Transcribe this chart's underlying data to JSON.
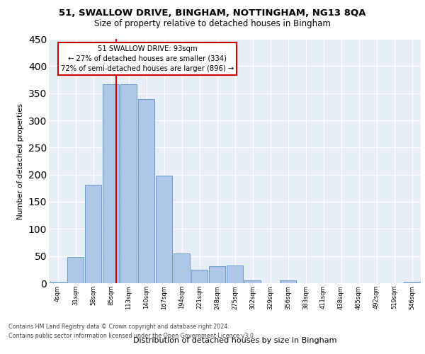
{
  "title1": "51, SWALLOW DRIVE, BINGHAM, NOTTINGHAM, NG13 8QA",
  "title2": "Size of property relative to detached houses in Bingham",
  "xlabel": "Distribution of detached houses by size in Bingham",
  "ylabel": "Number of detached properties",
  "bin_labels": [
    "4sqm",
    "31sqm",
    "58sqm",
    "85sqm",
    "113sqm",
    "140sqm",
    "167sqm",
    "194sqm",
    "221sqm",
    "248sqm",
    "275sqm",
    "302sqm",
    "329sqm",
    "356sqm",
    "383sqm",
    "411sqm",
    "438sqm",
    "465sqm",
    "492sqm",
    "519sqm",
    "546sqm"
  ],
  "bar_values": [
    3,
    48,
    181,
    367,
    366,
    339,
    198,
    55,
    25,
    31,
    32,
    5,
    0,
    5,
    0,
    0,
    0,
    0,
    0,
    0,
    3
  ],
  "bar_color": "#aec6e8",
  "bar_edge_color": "#5a8fc2",
  "annotation_line0": "51 SWALLOW DRIVE: 93sqm",
  "annotation_line1": "← 27% of detached houses are smaller (334)",
  "annotation_line2": "72% of semi-detached houses are larger (896) →",
  "annotation_box_color": "#ffffff",
  "annotation_box_edge": "#cc0000",
  "vline_color": "#cc0000",
  "ylim": [
    0,
    450
  ],
  "yticks": [
    0,
    50,
    100,
    150,
    200,
    250,
    300,
    350,
    400,
    450
  ],
  "background_color": "#e8eef8",
  "footnote1": "Contains HM Land Registry data © Crown copyright and database right 2024.",
  "footnote2": "Contains public sector information licensed under the Open Government Licence v3.0."
}
